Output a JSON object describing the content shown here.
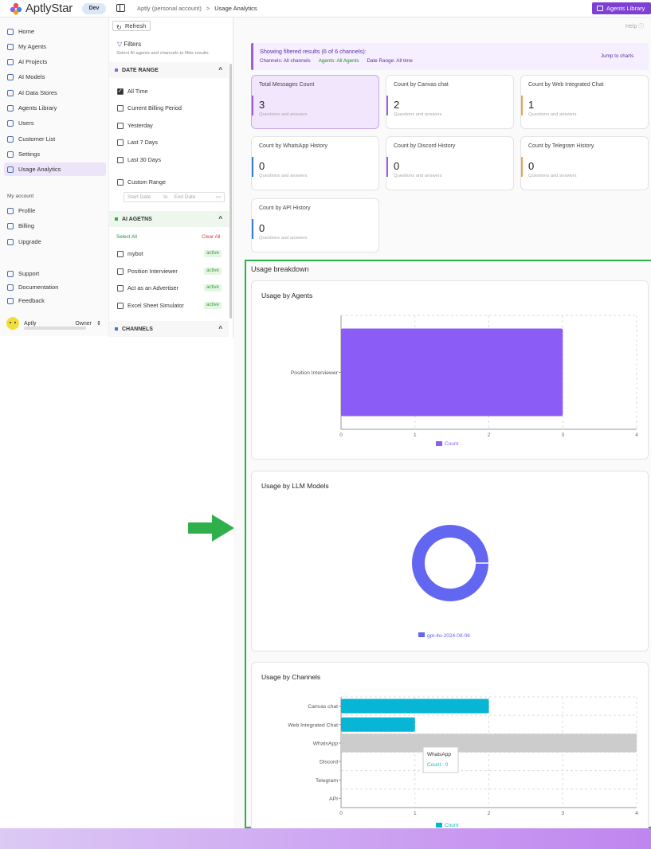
{
  "app": {
    "name": "AptlyStar",
    "env_badge": "Dev",
    "library_button": "Agents Library",
    "help": "Help"
  },
  "breadcrumb": {
    "workspace": "Aptly (personal account)",
    "separator": ">",
    "current": "Usage Analytics"
  },
  "sidebar": {
    "items": [
      {
        "label": "Home"
      },
      {
        "label": "My Agents"
      },
      {
        "label": "AI Projects"
      },
      {
        "label": "AI Models"
      },
      {
        "label": "AI Data Stores"
      },
      {
        "label": "Agents Library"
      },
      {
        "label": "Users"
      },
      {
        "label": "Customer List"
      },
      {
        "label": "Settings"
      },
      {
        "label": "Usage Analytics"
      }
    ],
    "account_label": "My account",
    "account_items": [
      {
        "label": "Profile"
      },
      {
        "label": "Billing"
      },
      {
        "label": "Upgrade"
      }
    ],
    "support_items": [
      {
        "label": "Support"
      },
      {
        "label": "Documentation"
      },
      {
        "label": "Feedback"
      }
    ],
    "user": {
      "first": "Aptly",
      "last": "Owner"
    }
  },
  "filters": {
    "refresh": "Refresh",
    "title": "Filters",
    "subtitle": "Select AI agents and channels to filter results",
    "date_range_title": "DATE RANGE",
    "date_options": [
      "All Time",
      "Current Billing Period",
      "Yesterday",
      "Last 7 Days",
      "Last 30 Days"
    ],
    "custom_range": "Custom Range",
    "start_placeholder": "Start Date",
    "to": "to",
    "end_placeholder": "End Date",
    "agents_title": "AI AGETNS",
    "select_all": "Select All",
    "clear_all": "Clear All",
    "agents": [
      {
        "name": "mybot",
        "status": "active"
      },
      {
        "name": "Position Interviewer",
        "status": "active"
      },
      {
        "name": "Act as an Advertiser",
        "status": "active"
      },
      {
        "name": "Excel Sheet Simulator",
        "status": "active"
      }
    ],
    "channels_title": "CHANNELS"
  },
  "summary": {
    "title": "Showing filtered results (6 of 6 channels):",
    "channels": "Channels: All channels",
    "agents": "Agents: All Agents",
    "date_range": "Date Range: All time",
    "jump": "Jump to charts"
  },
  "cards": [
    {
      "title": "Total Messages Count",
      "value": "3",
      "sub": "Questions and answers",
      "accent": "#9a5fe0"
    },
    {
      "title": "Count by Canvas chat",
      "value": "2",
      "sub": "Questions and answers",
      "accent": "#9a5fe0"
    },
    {
      "title": "Count by Web Integrated Chat",
      "value": "1",
      "sub": "Questions and answers",
      "accent": "#f0a050"
    },
    {
      "title": "Count by WhatsApp History",
      "value": "0",
      "sub": "Questions and answers",
      "accent": "#3a7ae0"
    },
    {
      "title": "Count by Discord History",
      "value": "0",
      "sub": "Questions and answers",
      "accent": "#9a5fe0"
    },
    {
      "title": "Count by Telegram History",
      "value": "0",
      "sub": "Questions and answers",
      "accent": "#f0a050"
    },
    {
      "title": "Count by API History",
      "value": "0",
      "sub": "Questions and answers",
      "accent": "#3a7ae0"
    }
  ],
  "breakdown_title": "Usage breakdown",
  "chart_data": [
    {
      "type": "bar",
      "title": "Usage by Agents",
      "orientation": "horizontal",
      "categories": [
        "Position Interviewer"
      ],
      "series": [
        {
          "name": "Count",
          "values": [
            3
          ],
          "color": "#8b5cf6"
        }
      ],
      "xlim": [
        0,
        4
      ],
      "xticks": [
        "0",
        "1",
        "2",
        "3",
        "4"
      ],
      "legend": "bottom"
    },
    {
      "type": "pie",
      "title": "Usage by LLM Models",
      "donut": true,
      "labels": [
        "gpt-4o-2024-08-06"
      ],
      "values": [
        3
      ],
      "colors": [
        "#6366f1"
      ],
      "legend": "bottom"
    },
    {
      "type": "bar",
      "title": "Usage by Channels",
      "orientation": "horizontal",
      "categories": [
        "Canvas chat",
        "Web Integrated Chat",
        "WhatsApp",
        "Discord",
        "Telegram",
        "API"
      ],
      "series": [
        {
          "name": "Count",
          "values": [
            2,
            1,
            0,
            0,
            0,
            0
          ],
          "color": "#06b6d4"
        }
      ],
      "xlim": [
        0,
        4
      ],
      "xticks": [
        "0",
        "1",
        "2",
        "3",
        "4"
      ],
      "tooltip": {
        "category": "WhatsApp",
        "text": "Count : 0"
      },
      "legend": "bottom"
    }
  ]
}
